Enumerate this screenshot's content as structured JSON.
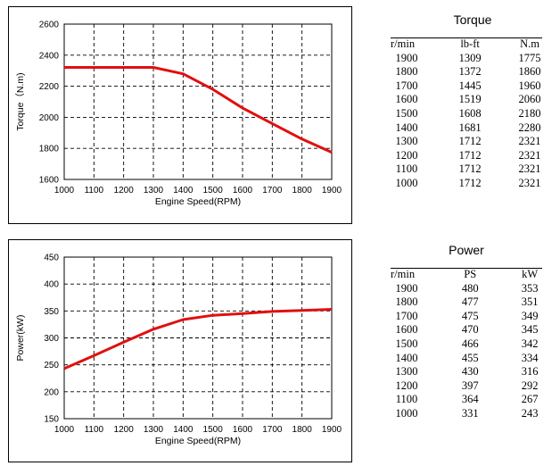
{
  "chart_data": [
    {
      "type": "line",
      "xlabel": "Engine Speed(RPM)",
      "ylabel": "Torque（N.m)",
      "xlim": [
        1000,
        1900
      ],
      "ylim": [
        1600,
        2600
      ],
      "xticks": [
        1000,
        1100,
        1200,
        1300,
        1400,
        1500,
        1600,
        1700,
        1800,
        1900
      ],
      "yticks": [
        1600,
        1800,
        2000,
        2200,
        2400,
        2600
      ],
      "grid": true,
      "series": [
        {
          "x": [
            1000,
            1100,
            1200,
            1300,
            1400,
            1500,
            1600,
            1700,
            1800,
            1900
          ],
          "y": [
            2321,
            2321,
            2321,
            2321,
            2280,
            2180,
            2060,
            1960,
            1860,
            1775
          ],
          "color": "#e01010"
        }
      ]
    },
    {
      "type": "line",
      "xlabel": "Engine Speed(RPM)",
      "ylabel": "Power(kW)",
      "xlim": [
        1000,
        1900
      ],
      "ylim": [
        150,
        450
      ],
      "xticks": [
        1000,
        1100,
        1200,
        1300,
        1400,
        1500,
        1600,
        1700,
        1800,
        1900
      ],
      "yticks": [
        150,
        200,
        250,
        300,
        350,
        400,
        450
      ],
      "grid": true,
      "series": [
        {
          "x": [
            1000,
            1100,
            1200,
            1300,
            1400,
            1500,
            1600,
            1700,
            1800,
            1900
          ],
          "y": [
            243,
            267,
            292,
            316,
            334,
            342,
            345,
            349,
            351,
            353
          ],
          "color": "#e01010"
        }
      ]
    }
  ],
  "torque_table": {
    "title": "Torque",
    "headers": [
      "r/min",
      "lb-ft",
      "N.m"
    ],
    "rows": [
      [
        "1900",
        "1309",
        "1775"
      ],
      [
        "1800",
        "1372",
        "1860"
      ],
      [
        "1700",
        "1445",
        "1960"
      ],
      [
        "1600",
        "1519",
        "2060"
      ],
      [
        "1500",
        "1608",
        "2180"
      ],
      [
        "1400",
        "1681",
        "2280"
      ],
      [
        "1300",
        "1712",
        "2321"
      ],
      [
        "1200",
        "1712",
        "2321"
      ],
      [
        "1100",
        "1712",
        "2321"
      ],
      [
        "1000",
        "1712",
        "2321"
      ]
    ]
  },
  "power_table": {
    "title": "Power",
    "headers": [
      "r/min",
      "PS",
      "kW"
    ],
    "rows": [
      [
        "1900",
        "480",
        "353"
      ],
      [
        "1800",
        "477",
        "351"
      ],
      [
        "1700",
        "475",
        "349"
      ],
      [
        "1600",
        "470",
        "345"
      ],
      [
        "1500",
        "466",
        "342"
      ],
      [
        "1400",
        "455",
        "334"
      ],
      [
        "1300",
        "430",
        "316"
      ],
      [
        "1200",
        "397",
        "292"
      ],
      [
        "1100",
        "364",
        "267"
      ],
      [
        "1000",
        "331",
        "243"
      ]
    ]
  }
}
